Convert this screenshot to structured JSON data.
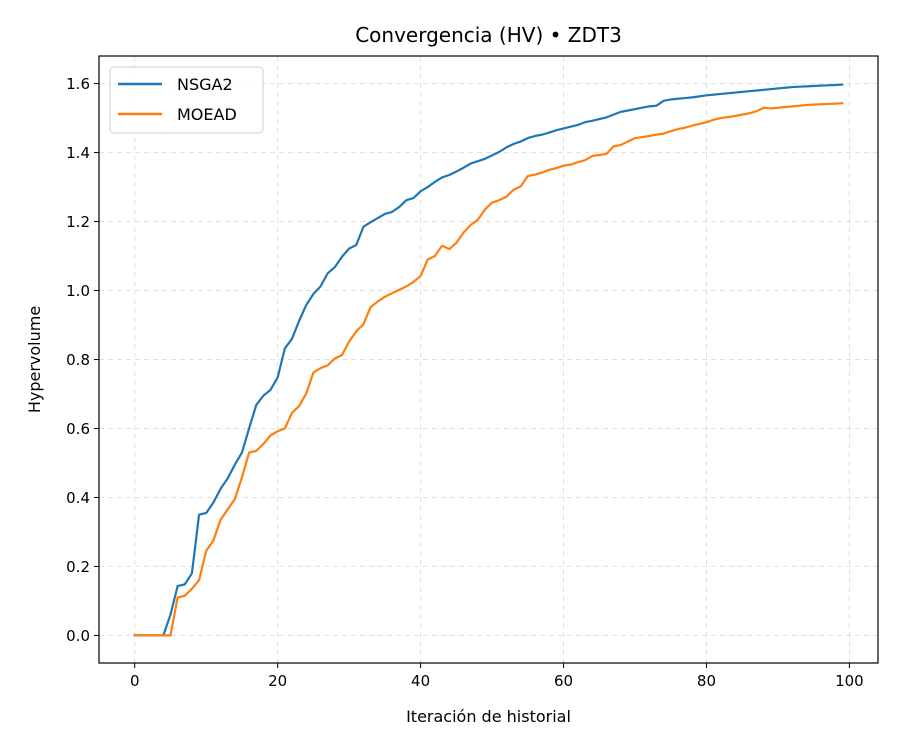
{
  "chart_data": {
    "type": "line",
    "title": "Convergencia (HV) • ZDT3",
    "xlabel": "Iteración de historial",
    "ylabel": "Hypervolume",
    "xlim": [
      -5,
      104
    ],
    "ylim": [
      -0.08,
      1.68
    ],
    "xticks": [
      0,
      20,
      40,
      60,
      80,
      100
    ],
    "yticks": [
      0.0,
      0.2,
      0.4,
      0.6,
      0.8,
      1.0,
      1.2,
      1.4,
      1.6
    ],
    "grid": true,
    "legend_position": "upper-left",
    "series": [
      {
        "name": "NSGA2",
        "color": "#1f77b4",
        "values": [
          0,
          0,
          0,
          0,
          0,
          0.06,
          0.143,
          0.148,
          0.18,
          0.35,
          0.355,
          0.385,
          0.425,
          0.455,
          0.495,
          0.53,
          0.6,
          0.668,
          0.695,
          0.712,
          0.748,
          0.832,
          0.86,
          0.912,
          0.958,
          0.99,
          1.012,
          1.05,
          1.068,
          1.098,
          1.122,
          1.132,
          1.185,
          1.198,
          1.21,
          1.222,
          1.228,
          1.242,
          1.262,
          1.268,
          1.288,
          1.3,
          1.315,
          1.328,
          1.335,
          1.345,
          1.356,
          1.368,
          1.375,
          1.382,
          1.392,
          1.402,
          1.415,
          1.425,
          1.432,
          1.442,
          1.448,
          1.452,
          1.458,
          1.465,
          1.47,
          1.475,
          1.48,
          1.488,
          1.492,
          1.497,
          1.502,
          1.51,
          1.518,
          1.522,
          1.526,
          1.53,
          1.534,
          1.536,
          1.55,
          1.554,
          1.556,
          1.558,
          1.56,
          1.563,
          1.566,
          1.568,
          1.57,
          1.572,
          1.574,
          1.576,
          1.578,
          1.58,
          1.582,
          1.584,
          1.586,
          1.588,
          1.59,
          1.591,
          1.592,
          1.593,
          1.594,
          1.595,
          1.596,
          1.597
        ]
      },
      {
        "name": "MOEAD",
        "color": "#ff7f0e",
        "values": [
          0,
          0,
          0,
          0,
          0,
          0,
          0.11,
          0.115,
          0.135,
          0.16,
          0.245,
          0.275,
          0.335,
          0.365,
          0.395,
          0.458,
          0.53,
          0.535,
          0.555,
          0.58,
          0.592,
          0.6,
          0.645,
          0.665,
          0.702,
          0.762,
          0.775,
          0.783,
          0.803,
          0.813,
          0.852,
          0.882,
          0.902,
          0.952,
          0.968,
          0.982,
          0.992,
          1.002,
          1.012,
          1.025,
          1.042,
          1.09,
          1.1,
          1.13,
          1.12,
          1.138,
          1.168,
          1.19,
          1.205,
          1.235,
          1.255,
          1.262,
          1.272,
          1.292,
          1.302,
          1.332,
          1.336,
          1.342,
          1.35,
          1.355,
          1.362,
          1.365,
          1.372,
          1.378,
          1.39,
          1.393,
          1.396,
          1.418,
          1.422,
          1.432,
          1.442,
          1.445,
          1.448,
          1.452,
          1.455,
          1.462,
          1.468,
          1.472,
          1.478,
          1.483,
          1.488,
          1.495,
          1.5,
          1.503,
          1.506,
          1.51,
          1.514,
          1.52,
          1.53,
          1.528,
          1.53,
          1.532,
          1.534,
          1.536,
          1.538,
          1.539,
          1.54,
          1.541,
          1.542,
          1.543
        ]
      }
    ]
  }
}
